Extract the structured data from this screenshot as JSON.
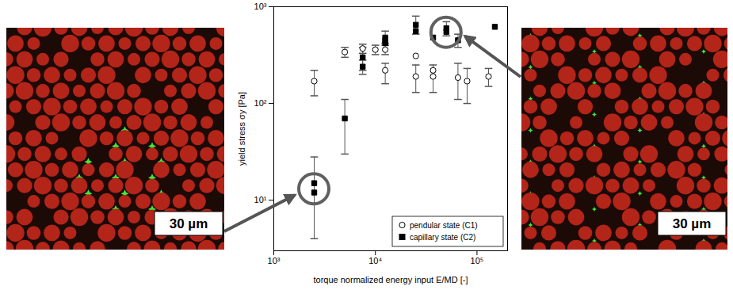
{
  "chart_data": {
    "type": "scatter",
    "x_label": "torque normalized energy input E/MD [-]",
    "y_label": "yield stress σy [Pa]",
    "log": true,
    "grid": false,
    "legend": "bottom-right",
    "xlim": [
      1000,
      200000
    ],
    "xticks": [
      {
        "value": 1000,
        "label": "10³"
      },
      {
        "value": 10000,
        "label": "10⁴"
      },
      {
        "value": 100000,
        "label": "10⁵"
      }
    ],
    "ylim": [
      3,
      1000
    ],
    "yticks": [
      {
        "value": 10,
        "label": "10¹"
      },
      {
        "value": 100,
        "label": "10²"
      },
      {
        "value": 1000,
        "label": "10³"
      }
    ],
    "series": [
      {
        "name": "pendular state (C1)",
        "color": "#000000",
        "marker": "open_circle",
        "x": [
          2500,
          5000,
          7500,
          10000,
          12500,
          12500,
          25000,
          25000,
          37000,
          37000,
          65000,
          80000,
          130000
        ],
        "values": [
          170,
          340,
          370,
          360,
          360,
          220,
          310,
          190,
          220,
          190,
          185,
          170,
          190
        ],
        "error_low": [
          120,
          300,
          330,
          320,
          320,
          160,
          null,
          130,
          null,
          130,
          110,
          100,
          150
        ],
        "error_high": [
          220,
          380,
          410,
          400,
          420,
          260,
          null,
          250,
          null,
          250,
          260,
          230,
          230
        ]
      },
      {
        "name": "capillary state (C2)",
        "color": "#000000",
        "marker": "square",
        "x": [
          2500,
          2500,
          5000,
          7500,
          7500,
          12500,
          12500,
          12500,
          25000,
          25000,
          37000,
          50000,
          50000,
          65000,
          150000
        ],
        "values": [
          15,
          12,
          70,
          300,
          240,
          480,
          420,
          450,
          650,
          560,
          480,
          600,
          550,
          450,
          620
        ],
        "error_low": [
          4,
          null,
          30,
          220,
          200,
          400,
          null,
          null,
          520,
          null,
          null,
          500,
          null,
          380,
          null
        ],
        "error_high": [
          28,
          null,
          110,
          380,
          280,
          560,
          null,
          null,
          800,
          null,
          null,
          700,
          null,
          520,
          null
        ]
      }
    ],
    "highlights": [
      {
        "x": 2500,
        "y": 13
      },
      {
        "x": 50000,
        "y": 540
      }
    ],
    "scale_bars": [
      "30 µm",
      "30 µm"
    ]
  }
}
